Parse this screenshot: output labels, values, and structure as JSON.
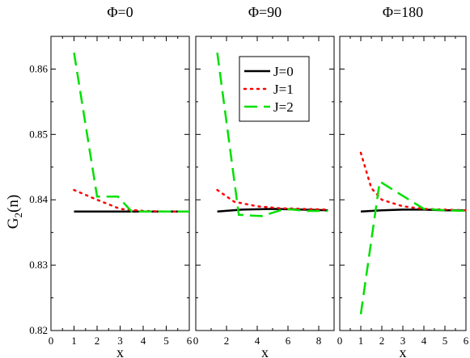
{
  "figure": {
    "ylabel_main": "G",
    "ylabel_sub": "2",
    "ylabel_tail": "(n)"
  },
  "colors": {
    "J=0": "#000000",
    "J=1": "#ff0000",
    "J=2": "#00e000"
  },
  "chart_data": [
    {
      "type": "line",
      "title": "Φ=0",
      "xlabel": "x",
      "ylabel": "G2(n)",
      "xlim": [
        0,
        6
      ],
      "ylim": [
        0.82,
        0.865
      ],
      "xticks": [
        0,
        1,
        2,
        3,
        4,
        5,
        6
      ],
      "yticks": [
        0.82,
        0.83,
        0.84,
        0.85,
        0.86
      ],
      "ytick_labels": [
        "0.82",
        "0.83",
        "0.84",
        "0.85",
        "0.86"
      ],
      "series": [
        {
          "name": "J=0",
          "x": [
            1,
            6
          ],
          "y": [
            0.8382,
            0.8382
          ]
        },
        {
          "name": "J=1",
          "x": [
            1,
            2,
            3,
            4,
            5,
            6
          ],
          "y": [
            0.8415,
            0.84,
            0.8386,
            0.8383,
            0.8382,
            0.8382
          ]
        },
        {
          "name": "J=2",
          "x": [
            1,
            2,
            2.9,
            3.5,
            4,
            5,
            6
          ],
          "y": [
            0.8625,
            0.8405,
            0.8405,
            0.8382,
            0.8382,
            0.8382,
            0.8382
          ]
        }
      ]
    },
    {
      "type": "line",
      "title": "Φ=90",
      "xlabel": "x",
      "xlim": [
        0,
        9
      ],
      "ylim": [
        0.82,
        0.865
      ],
      "xticks": [
        0,
        2,
        4,
        6,
        8
      ],
      "series": [
        {
          "name": "J=0",
          "x": [
            1.4,
            3,
            5,
            7,
            8.6
          ],
          "y": [
            0.8382,
            0.8385,
            0.8386,
            0.8385,
            0.8384
          ]
        },
        {
          "name": "J=1",
          "x": [
            1.4,
            2.5,
            4,
            5.5,
            7,
            8.6
          ],
          "y": [
            0.8415,
            0.8397,
            0.839,
            0.8387,
            0.8386,
            0.8385
          ]
        },
        {
          "name": "J=2",
          "x": [
            1.4,
            2.8,
            4.3,
            5.8,
            7.2,
            8.6
          ],
          "y": [
            0.8625,
            0.8377,
            0.8375,
            0.8386,
            0.8383,
            0.8383
          ]
        }
      ],
      "legend": {
        "placement": "top-right",
        "entries": [
          "J=0",
          "J=1",
          "J=2"
        ]
      }
    },
    {
      "type": "line",
      "title": "Φ=180",
      "xlabel": "x",
      "xlim": [
        0,
        6
      ],
      "ylim": [
        0.82,
        0.865
      ],
      "xticks": [
        0,
        1,
        2,
        3,
        4,
        5,
        6
      ],
      "series": [
        {
          "name": "J=0",
          "x": [
            1,
            2,
            3,
            4,
            5,
            6
          ],
          "y": [
            0.8382,
            0.8384,
            0.8385,
            0.8385,
            0.8384,
            0.8384
          ]
        },
        {
          "name": "J=1",
          "x": [
            1,
            1.5,
            2,
            3,
            4,
            5,
            6
          ],
          "y": [
            0.8472,
            0.8418,
            0.84,
            0.839,
            0.8386,
            0.8385,
            0.8384
          ]
        },
        {
          "name": "J=2",
          "x": [
            1,
            1.9,
            4,
            5,
            6
          ],
          "y": [
            0.8225,
            0.8428,
            0.8386,
            0.8384,
            0.8383
          ]
        }
      ]
    }
  ]
}
